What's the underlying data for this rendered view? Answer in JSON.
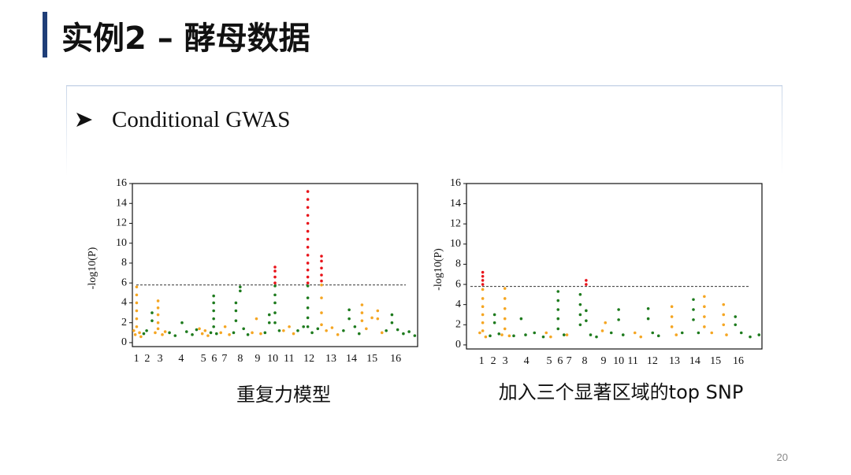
{
  "title": "实例2 – 酵母数据",
  "bullet": "Conditional GWAS",
  "page_number": "20",
  "chart_data": [
    {
      "type": "scatter",
      "caption": "重复力模型",
      "ylabel": "-log10(P)",
      "xlim": [
        0,
        100
      ],
      "ylim": [
        -0.4,
        16
      ],
      "yticks": [
        0,
        2,
        4,
        6,
        8,
        10,
        12,
        14,
        16
      ],
      "xticks": [
        {
          "value": 1.4,
          "label": "1"
        },
        {
          "value": 5.2,
          "label": "2"
        },
        {
          "value": 9.7,
          "label": "3"
        },
        {
          "value": 17.1,
          "label": "4"
        },
        {
          "value": 24.9,
          "label": "5"
        },
        {
          "value": 28.7,
          "label": "6"
        },
        {
          "value": 32.3,
          "label": "7"
        },
        {
          "value": 37.8,
          "label": "8"
        },
        {
          "value": 43.9,
          "label": "9"
        },
        {
          "value": 49.2,
          "label": "10"
        },
        {
          "value": 54.9,
          "label": "11"
        },
        {
          "value": 61.9,
          "label": "12"
        },
        {
          "value": 69.6,
          "label": "13"
        },
        {
          "value": 76.8,
          "label": "14"
        },
        {
          "value": 84.0,
          "label": "15"
        },
        {
          "value": 92.3,
          "label": "16"
        }
      ],
      "threshold": 5.8,
      "series": [
        {
          "color": "#f5a623",
          "x": [
            0.5,
            1.0,
            1.5,
            1.5,
            1.5,
            1.5,
            1.5,
            1.5,
            2.5,
            3,
            8,
            9,
            9,
            9,
            9,
            9,
            10.5,
            11.5,
            23.5,
            24.5,
            25.5,
            26.5,
            31,
            32.5,
            34,
            42,
            43.5,
            45,
            53,
            55,
            56.5,
            66.3,
            66.3,
            66.3,
            66.3,
            68,
            70,
            72,
            80.5,
            80.5,
            80.5,
            82,
            84,
            86,
            86,
            87.5
          ],
          "values": [
            1.2,
            0.8,
            5.6,
            4.8,
            4,
            3.2,
            2.4,
            1.6,
            1.0,
            0.6,
            1.0,
            4.2,
            3.5,
            2.8,
            2.0,
            1.4,
            0.8,
            1.1,
            1.4,
            0.9,
            1.2,
            0.7,
            1.0,
            1.6,
            0.8,
            1.0,
            2.4,
            0.9,
            1.2,
            1.6,
            0.9,
            5.8,
            4.5,
            3.0,
            1.8,
            1.2,
            1.5,
            0.8,
            3.8,
            3.0,
            2.2,
            1.4,
            2.5,
            3.2,
            2.4,
            1.0
          ]
        },
        {
          "color": "#1e7b1e",
          "x": [
            4,
            5,
            6.9,
            6.9,
            13,
            15,
            17.4,
            19,
            21,
            22.5,
            27.5,
            28.5,
            28.5,
            28.5,
            28.5,
            28.5,
            29.5,
            35.5,
            36.3,
            36.3,
            36.3,
            37.8,
            37.8,
            39,
            40.5,
            46.5,
            48,
            48,
            50,
            50,
            50,
            50,
            50,
            51.5,
            58,
            60,
            61.5,
            61.5,
            61.5,
            61.5,
            61.5,
            63,
            65,
            74,
            76,
            76,
            78,
            79.5,
            89,
            91,
            91,
            93,
            95,
            97,
            99
          ],
          "values": [
            0.9,
            1.2,
            3.0,
            2.2,
            1.0,
            0.7,
            2.0,
            1.1,
            0.8,
            1.3,
            1.0,
            4.7,
            4.0,
            3.2,
            2.4,
            1.6,
            0.9,
            1.0,
            4.0,
            3.2,
            2.2,
            5.6,
            5.2,
            1.4,
            0.8,
            1.0,
            2.8,
            2,
            5.7,
            4.8,
            4.0,
            3.0,
            2.0,
            1.2,
            1.2,
            1.6,
            5.7,
            4.5,
            3.5,
            2.5,
            1.6,
            1.0,
            1.4,
            1.2,
            3.3,
            2.4,
            1.6,
            0.9,
            1.2,
            2.8,
            2.0,
            1.3,
            0.9,
            1.1,
            0.7
          ]
        },
        {
          "color": "#e8141b",
          "x": [
            50,
            50,
            50,
            50,
            61.5,
            61.5,
            61.5,
            61.5,
            61.5,
            61.5,
            61.5,
            61.5,
            61.5,
            61.5,
            61.5,
            61.5,
            61.5,
            66.3,
            66.3,
            66.3,
            66.3,
            66.3
          ],
          "values": [
            6.0,
            6.6,
            7.2,
            7.6,
            6.0,
            6.6,
            7.3,
            8.0,
            8.8,
            9.6,
            10.4,
            11.2,
            12.0,
            12.8,
            13.6,
            14.4,
            15.2,
            6.2,
            6.8,
            7.5,
            8.2,
            8.7
          ]
        }
      ]
    },
    {
      "type": "scatter",
      "caption": "加入三个显著区域的top SNP",
      "ylabel": "-log10(P)",
      "xlim": [
        0,
        100
      ],
      "ylim": [
        -0.4,
        16
      ],
      "yticks": [
        0,
        2,
        4,
        6,
        8,
        10,
        12,
        14,
        16
      ],
      "xticks": [
        {
          "value": 5.1,
          "label": "1"
        },
        {
          "value": 9.1,
          "label": "2"
        },
        {
          "value": 13.1,
          "label": "3"
        },
        {
          "value": 20.3,
          "label": "4"
        },
        {
          "value": 28.0,
          "label": "5"
        },
        {
          "value": 31.7,
          "label": "6"
        },
        {
          "value": 34.7,
          "label": "7"
        },
        {
          "value": 40.0,
          "label": "8"
        },
        {
          "value": 46.4,
          "label": "9"
        },
        {
          "value": 51.5,
          "label": "10"
        },
        {
          "value": 56.3,
          "label": "11"
        },
        {
          "value": 62.9,
          "label": "12"
        },
        {
          "value": 70.4,
          "label": "13"
        },
        {
          "value": 77.3,
          "label": "14"
        },
        {
          "value": 84.3,
          "label": "15"
        },
        {
          "value": 92.0,
          "label": "16"
        }
      ],
      "threshold": 5.8,
      "series": [
        {
          "color": "#f5a623",
          "x": [
            4.5,
            5.5,
            5.5,
            5.5,
            5.5,
            5.5,
            5.5,
            6.5,
            12,
            13,
            13,
            13,
            13,
            13,
            14.5,
            27,
            28.5,
            34,
            46,
            47,
            57,
            59,
            69.5,
            69.5,
            69.5,
            71,
            80.5,
            80.5,
            80.5,
            80.5,
            83,
            87,
            87,
            87,
            88
          ],
          "values": [
            1.2,
            5.5,
            4.6,
            3.8,
            3.0,
            2.2,
            1.4,
            0.8,
            1.0,
            5.6,
            4.6,
            3.6,
            2.6,
            1.6,
            0.9,
            1.2,
            0.8,
            1.0,
            1.4,
            2.2,
            1.2,
            0.8,
            3.8,
            2.8,
            1.8,
            1.0,
            4.8,
            3.8,
            2.8,
            1.8,
            1.2,
            4.0,
            3.0,
            2.0,
            1.0
          ]
        },
        {
          "color": "#1e7b1e",
          "x": [
            8,
            9.5,
            9.5,
            11,
            16,
            18.5,
            20,
            23,
            26,
            31,
            31,
            31,
            31,
            31,
            33,
            38.5,
            38.5,
            38.5,
            38.5,
            40.5,
            40.5,
            42,
            44,
            49,
            51.5,
            51.5,
            53,
            61.5,
            61.5,
            63,
            65,
            73,
            76.8,
            76.8,
            76.8,
            78.5,
            91,
            91,
            93,
            96,
            99
          ],
          "values": [
            0.9,
            3.0,
            2.2,
            1.1,
            0.9,
            2.6,
            1.0,
            1.2,
            0.8,
            5.3,
            4.4,
            3.5,
            2.6,
            1.6,
            1.0,
            5.0,
            4.0,
            3.0,
            2.0,
            3.4,
            2.4,
            1.0,
            0.8,
            1.2,
            3.5,
            2.5,
            1.0,
            3.6,
            2.6,
            1.2,
            0.9,
            1.2,
            4.5,
            3.5,
            2.5,
            1.2,
            2.8,
            2.0,
            1.2,
            0.8,
            1.0
          ]
        },
        {
          "color": "#e8141b",
          "x": [
            5.5,
            5.5,
            5.5,
            5.5,
            40.5,
            40.5
          ],
          "values": [
            6.0,
            6.4,
            6.8,
            7.2,
            6.0,
            6.4
          ]
        }
      ]
    }
  ]
}
